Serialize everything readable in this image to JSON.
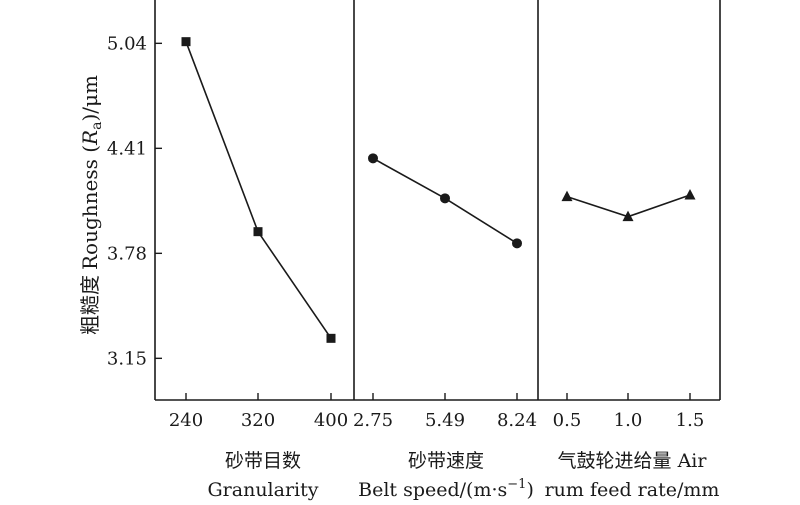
{
  "chart_data": {
    "type": "line",
    "ylabel_cn": "粗糙度",
    "ylabel_en_prefix": "Roughness (",
    "ylabel_en_italic": "R",
    "ylabel_en_sub": "a",
    "ylabel_en_suffix": ")/μm",
    "yticks": [
      5.04,
      4.41,
      3.78,
      3.15
    ],
    "ylim": [
      2.9,
      5.3
    ],
    "grid": false,
    "panels": [
      {
        "title_cn": "砂带目数",
        "title_en": "Granularity",
        "marker": "square",
        "categories": [
          "240",
          "320",
          "400"
        ],
        "values": [
          5.05,
          3.91,
          3.27
        ]
      },
      {
        "title_cn": "砂带速度",
        "title_en": "Belt speed/(m·s",
        "title_en_sup": "−1",
        "title_en_close": ")",
        "marker": "circle",
        "categories": [
          "2.75",
          "5.49",
          "8.24"
        ],
        "values": [
          4.35,
          4.11,
          3.84
        ]
      },
      {
        "title_cn": "气鼓轮进给量 Air",
        "title_en": "rum feed rate/mm",
        "marker": "triangle",
        "categories": [
          "0.5",
          "1.0",
          "1.5"
        ],
        "values": [
          4.12,
          4.0,
          4.13
        ]
      }
    ]
  }
}
